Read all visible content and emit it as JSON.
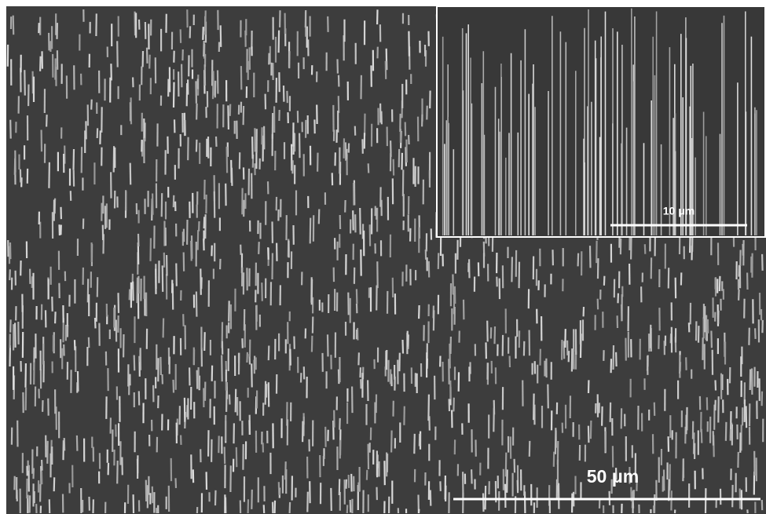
{
  "scale_bar": {
    "label": "50 μm"
  },
  "inset": {
    "scale_bar": {
      "label": "10 μm"
    }
  }
}
